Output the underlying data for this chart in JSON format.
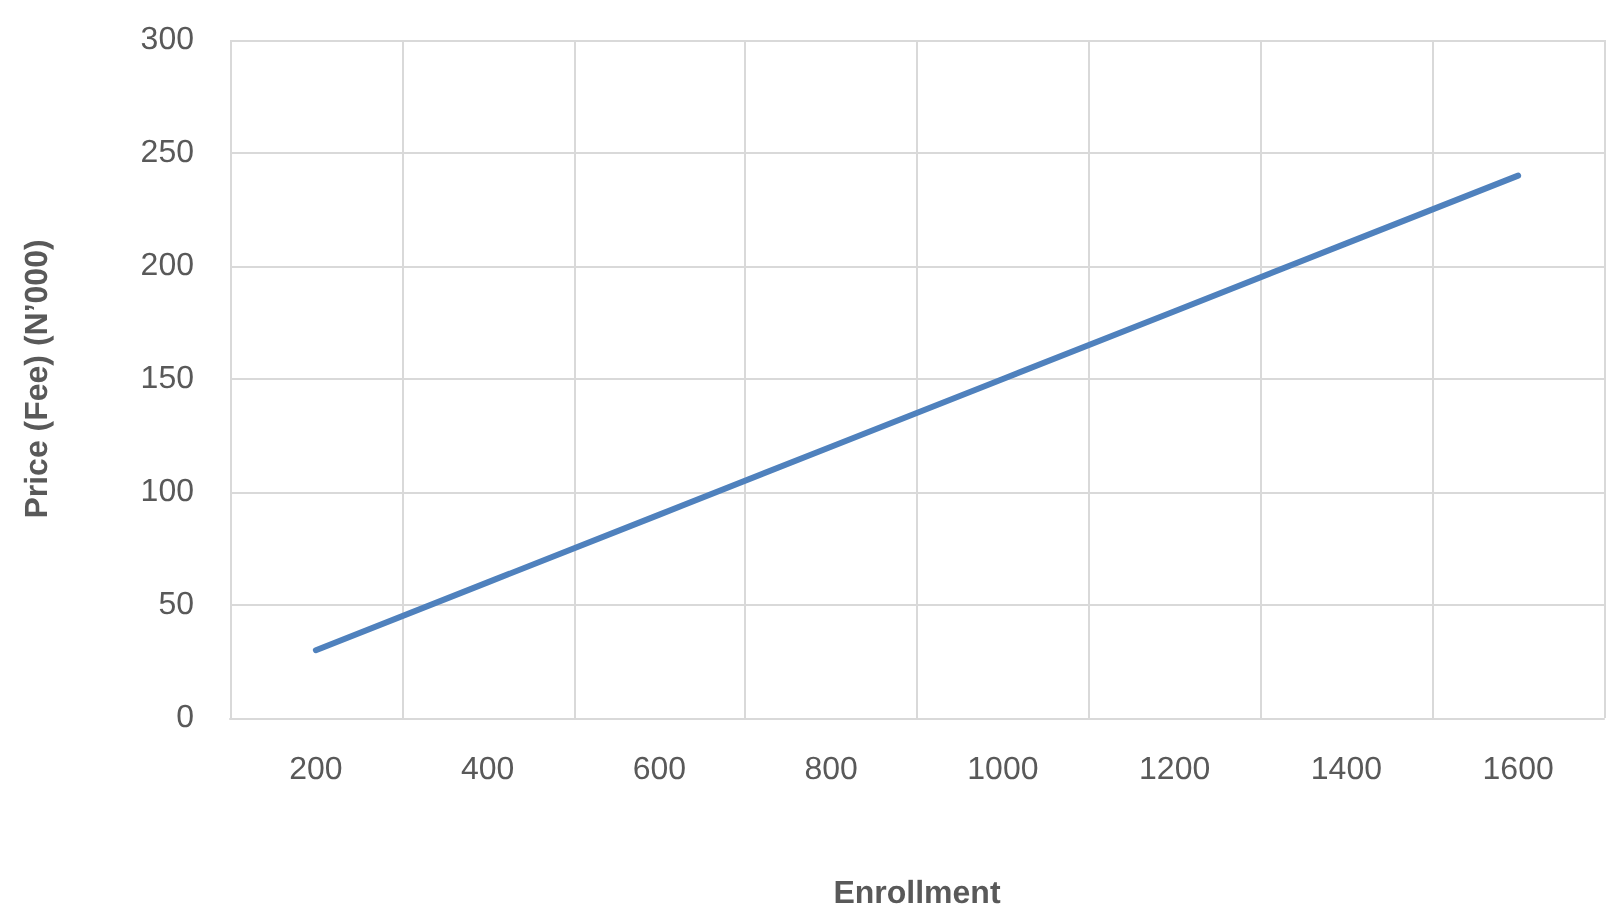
{
  "chart_data": {
    "type": "line",
    "xlabel": "Enrollment",
    "ylabel": "Price (Fee) (N’000)",
    "categories": [
      "200",
      "400",
      "600",
      "800",
      "1000",
      "1200",
      "1400",
      "1600"
    ],
    "series": [
      {
        "color": "#4f81bd",
        "values": [
          30,
          60,
          90,
          120,
          150,
          180,
          210,
          240
        ]
      }
    ],
    "ylim": [
      0,
      300
    ],
    "yticks": [
      0,
      50,
      100,
      150,
      200,
      250,
      300
    ],
    "grid": true,
    "marker": "none",
    "line_style": "solid"
  }
}
